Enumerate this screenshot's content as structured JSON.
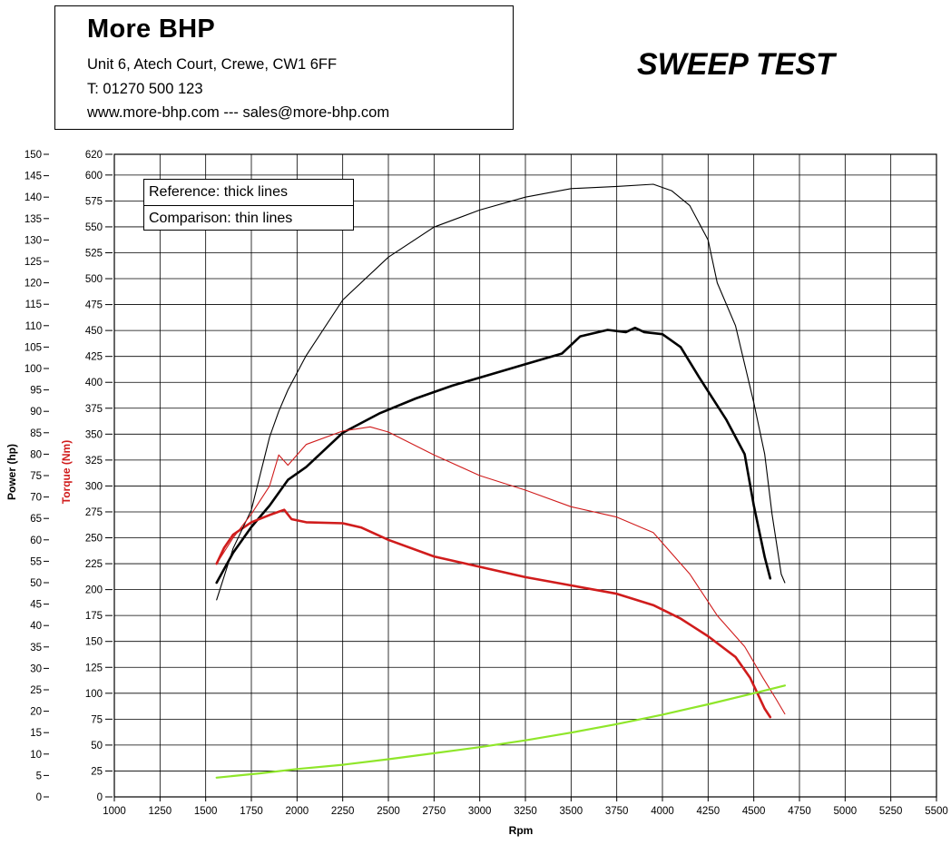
{
  "header": {
    "company": "More BHP",
    "address": "Unit 6, Atech Court, Crewe, CW1 6FF",
    "phone": "T: 01270 500 123",
    "contact": "www.more-bhp.com --- sales@more-bhp.com"
  },
  "test_title": "SWEEP TEST",
  "legend": {
    "reference": "Reference: thick lines",
    "comparison": "Comparison: thin lines"
  },
  "colors": {
    "power": "#000000",
    "torque": "#d01c1c",
    "speed": "#8fe62a",
    "grid": "#000000"
  },
  "chart_data": {
    "type": "line",
    "title": "SWEEP TEST",
    "xlabel": "Rpm",
    "ylabel_left": "Power (hp)",
    "ylabel_right": "Torque (Nm)",
    "xlim": [
      1000,
      5500
    ],
    "xticks": [
      1000,
      1250,
      1500,
      1750,
      2000,
      2250,
      2500,
      2750,
      3000,
      3250,
      3500,
      3750,
      4000,
      4250,
      4500,
      4750,
      5000,
      5250,
      5500
    ],
    "power_ylim": [
      0,
      150
    ],
    "power_ticks": [
      0,
      5,
      10,
      15,
      20,
      25,
      30,
      35,
      40,
      45,
      50,
      55,
      60,
      65,
      70,
      75,
      80,
      85,
      90,
      95,
      100,
      105,
      110,
      115,
      120,
      125,
      130,
      135,
      140,
      145,
      150
    ],
    "torque_ticks": [
      0,
      25,
      50,
      75,
      100,
      125,
      150,
      175,
      200,
      225,
      250,
      275,
      300,
      325,
      350,
      375,
      400,
      425,
      450,
      475,
      500,
      525,
      550,
      575,
      600,
      620
    ],
    "grid": true,
    "legend_position": "top-left",
    "series": [
      {
        "name": "Reference: thick lines",
        "role": "power",
        "weight": "thick",
        "color": "#000000",
        "x": [
          1560,
          1650,
          1750,
          1850,
          1950,
          2050,
          2250,
          2450,
          2650,
          2850,
          3050,
          3250,
          3450,
          3550,
          3700,
          3800,
          3850,
          3900,
          4000,
          4100,
          4200,
          4350,
          4450,
          4500,
          4560,
          4590
        ],
        "y": [
          50,
          57,
          63,
          68,
          74,
          77,
          85,
          89.5,
          93,
          96,
          98.5,
          101,
          103.5,
          107.5,
          109,
          108.5,
          109.5,
          108.5,
          108,
          105,
          98,
          88,
          80,
          68,
          56,
          51
        ]
      },
      {
        "name": "Reference: thick lines",
        "role": "torque",
        "weight": "thick",
        "color": "#d01c1c",
        "x": [
          1560,
          1600,
          1650,
          1750,
          1850,
          1930,
          1970,
          2050,
          2250,
          2350,
          2500,
          2750,
          3000,
          3250,
          3500,
          3750,
          3950,
          4100,
          4250,
          4400,
          4480,
          4560,
          4590
        ],
        "y": [
          225,
          240,
          253,
          265,
          272,
          277,
          268,
          265,
          264,
          260,
          248,
          232,
          222,
          212,
          204,
          196,
          185,
          172,
          155,
          135,
          115,
          85,
          77
        ]
      },
      {
        "name": "Comparison: thin lines",
        "role": "power",
        "weight": "thin",
        "color": "#000000",
        "x": [
          1560,
          1650,
          1750,
          1850,
          1900,
          1950,
          2050,
          2250,
          2500,
          2750,
          3000,
          3250,
          3500,
          3750,
          3950,
          4050,
          4150,
          4250,
          4300,
          4400,
          4500,
          4560,
          4600,
          4650,
          4670
        ],
        "y": [
          46,
          58,
          67,
          84,
          90,
          95,
          103,
          116,
          126,
          133,
          137,
          140,
          142,
          142.5,
          143,
          141.5,
          138,
          130,
          120,
          110,
          92,
          80,
          66,
          52,
          50
        ]
      },
      {
        "name": "Comparison: thin lines",
        "role": "torque",
        "weight": "thin",
        "color": "#d01c1c",
        "x": [
          1560,
          1650,
          1750,
          1850,
          1900,
          1950,
          2050,
          2250,
          2400,
          2500,
          2750,
          3000,
          3250,
          3500,
          3750,
          3950,
          4150,
          4300,
          4450,
          4550,
          4620,
          4670
        ],
        "y": [
          225,
          250,
          273,
          300,
          330,
          320,
          340,
          353,
          357,
          352,
          330,
          310,
          296,
          280,
          270,
          255,
          215,
          175,
          145,
          115,
          95,
          80
        ]
      },
      {
        "name": "Comparison: thin lines",
        "role": "speed",
        "weight": "thin",
        "color": "#8fe62a",
        "x": [
          1560,
          1800,
          2000,
          2250,
          2500,
          2750,
          3000,
          3250,
          3500,
          3750,
          4000,
          4250,
          4500,
          4670
        ],
        "y": [
          4.5,
          5.5,
          6.5,
          7.5,
          8.8,
          10.2,
          11.6,
          13.2,
          15,
          17,
          19.2,
          21.6,
          24.2,
          26
        ]
      }
    ]
  }
}
